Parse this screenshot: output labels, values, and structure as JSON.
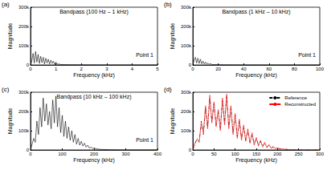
{
  "chart_data": [
    {
      "type": "line",
      "panel_label": "(a)",
      "title": "Bandpass (100 Hz – 1 kHz)",
      "annotations": [
        "Point 1"
      ],
      "x_label": "Frequency (kHz)",
      "y_label": "Magnitude",
      "x": [
        0,
        0.05,
        0.1,
        0.15,
        0.2,
        0.25,
        0.3,
        0.35,
        0.4,
        0.45,
        0.5,
        0.55,
        0.6,
        0.65,
        0.7,
        0.75,
        0.8,
        0.85,
        0.9,
        0.95,
        1.0,
        1.05,
        1.1,
        1.2,
        1.5,
        2,
        3,
        4,
        5
      ],
      "series": [
        {
          "color": "#000000",
          "line_style": "solid",
          "values": [
            0,
            20000,
            60000,
            10000,
            70000,
            15000,
            55000,
            8000,
            45000,
            12000,
            40000,
            5000,
            35000,
            10000,
            30000,
            5000,
            25000,
            8000,
            20000,
            3000,
            15000,
            4000,
            5000,
            2000,
            1000,
            500,
            0,
            0,
            0
          ]
        }
      ],
      "xlim": [
        0,
        5
      ],
      "xticks": [
        0,
        1,
        2,
        3,
        4,
        5
      ],
      "ylim": [
        0,
        300000
      ],
      "yticks": [
        0,
        {
          "value": 100000,
          "label": "100k"
        },
        {
          "value": 200000,
          "label": "200k"
        },
        {
          "value": 300000,
          "label": "300k"
        }
      ],
      "grid": false
    },
    {
      "type": "line",
      "panel_label": "(b)",
      "title": "Bandpass (1 kHz – 10 kHz)",
      "annotations": [
        "Point 1"
      ],
      "x_label": "Frequency (kHz)",
      "y_label": "Magnitude",
      "x": [
        0,
        1,
        2,
        3,
        4,
        5,
        6,
        7,
        8,
        9,
        10,
        11,
        12,
        13,
        14,
        15,
        17,
        20,
        25,
        30,
        50,
        100
      ],
      "series": [
        {
          "color": "#000000",
          "line_style": "solid",
          "values": [
            0,
            25000,
            40000,
            10000,
            35000,
            8000,
            30000,
            6000,
            20000,
            5000,
            15000,
            4000,
            10000,
            3000,
            8000,
            2000,
            1500,
            1000,
            500,
            200,
            0,
            0
          ]
        }
      ],
      "xlim": [
        0,
        100
      ],
      "xticks": [
        0,
        20,
        40,
        60,
        80,
        100
      ],
      "ylim": [
        0,
        300000
      ],
      "yticks": [
        0,
        {
          "value": 100000,
          "label": "100k"
        },
        {
          "value": 200000,
          "label": "200k"
        },
        {
          "value": 300000,
          "label": "300k"
        }
      ],
      "grid": false
    },
    {
      "type": "line",
      "panel_label": "(c)",
      "title": "Bandpass (10 kHz – 100 kHz)",
      "annotations": [
        "Point 1"
      ],
      "x_label": "Frequency (kHz)",
      "y_label": "Magnitude",
      "x": [
        0,
        5,
        10,
        15,
        20,
        25,
        30,
        35,
        40,
        45,
        50,
        55,
        60,
        65,
        70,
        75,
        80,
        85,
        90,
        95,
        100,
        105,
        110,
        115,
        120,
        125,
        130,
        135,
        140,
        145,
        150,
        155,
        160,
        165,
        170,
        175,
        180,
        185,
        190,
        195,
        200,
        210,
        220,
        250,
        300,
        400
      ],
      "series": [
        {
          "color": "#000000",
          "line_style": "solid",
          "values": [
            0,
            30000,
            60000,
            40000,
            150000,
            80000,
            220000,
            120000,
            270000,
            150000,
            240000,
            130000,
            200000,
            110000,
            260000,
            140000,
            280000,
            120000,
            220000,
            90000,
            180000,
            70000,
            150000,
            60000,
            120000,
            50000,
            100000,
            40000,
            80000,
            30000,
            60000,
            25000,
            45000,
            20000,
            35000,
            15000,
            25000,
            10000,
            15000,
            8000,
            10000,
            5000,
            3000,
            1000,
            0,
            0
          ]
        }
      ],
      "xlim": [
        0,
        400
      ],
      "xticks": [
        0,
        100,
        200,
        300,
        400
      ],
      "ylim": [
        0,
        300000
      ],
      "yticks": [
        0,
        {
          "value": 100000,
          "label": "100k"
        },
        {
          "value": 200000,
          "label": "200k"
        },
        {
          "value": 300000,
          "label": "300k"
        }
      ],
      "grid": false
    },
    {
      "type": "line",
      "panel_label": "(d)",
      "x_label": "Frequency (kHz)",
      "y_label": "Magnitude",
      "x": [
        0,
        5,
        10,
        15,
        20,
        25,
        30,
        35,
        40,
        45,
        50,
        55,
        60,
        65,
        70,
        75,
        80,
        85,
        90,
        95,
        100,
        105,
        110,
        115,
        120,
        125,
        130,
        135,
        140,
        145,
        150,
        155,
        160,
        165,
        170,
        175,
        180,
        185,
        190,
        195,
        200,
        205,
        210,
        215,
        220,
        225,
        230,
        235,
        240,
        245,
        250,
        300
      ],
      "series": [
        {
          "name": "Reference",
          "color": "#000000",
          "line_style": "dashdot",
          "values": [
            0,
            30000,
            60000,
            40000,
            150000,
            80000,
            220000,
            120000,
            270000,
            150000,
            240000,
            130000,
            200000,
            110000,
            260000,
            140000,
            280000,
            120000,
            220000,
            90000,
            180000,
            70000,
            150000,
            60000,
            120000,
            50000,
            100000,
            40000,
            80000,
            30000,
            60000,
            25000,
            45000,
            20000,
            35000,
            15000,
            25000,
            10000,
            15000,
            8000,
            10000,
            6000,
            5000,
            4000,
            3000,
            2000,
            2000,
            1000,
            1000,
            500,
            0,
            0
          ]
        },
        {
          "name": "Reconstructed",
          "color": "#ff0000",
          "line_style": "solid",
          "values": [
            0,
            35000,
            55000,
            45000,
            140000,
            90000,
            230000,
            110000,
            285000,
            140000,
            250000,
            120000,
            210000,
            100000,
            270000,
            130000,
            290000,
            110000,
            230000,
            80000,
            190000,
            60000,
            160000,
            50000,
            130000,
            45000,
            110000,
            35000,
            90000,
            25000,
            65000,
            20000,
            50000,
            15000,
            40000,
            12000,
            28000,
            8000,
            18000,
            6000,
            12000,
            5000,
            6000,
            3000,
            4000,
            2000,
            2500,
            1000,
            1500,
            500,
            0,
            0
          ]
        }
      ],
      "xlim": [
        0,
        300
      ],
      "xticks": [
        0,
        50,
        100,
        150,
        200,
        250,
        300
      ],
      "ylim": [
        0,
        300000
      ],
      "yticks": [
        0,
        {
          "value": 100000,
          "label": "100k"
        },
        {
          "value": 200000,
          "label": "200k"
        },
        {
          "value": 300000,
          "label": "300k"
        }
      ],
      "grid": false,
      "legend": "upper right"
    }
  ]
}
